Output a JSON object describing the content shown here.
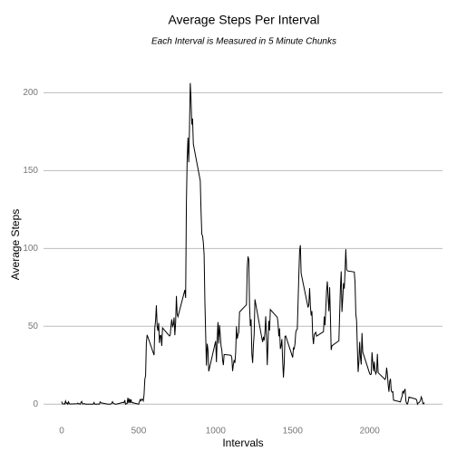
{
  "chart_data": {
    "type": "line",
    "title": "Average Steps Per Interval",
    "subtitle": "Each Interval is Measured in 5 Minute Chunks",
    "x_label": "Intervals",
    "y_label": "Average Steps",
    "grid": true,
    "xlim": [
      -117.75,
      2472.75
    ],
    "ylim": [
      -10.3,
      216.5
    ],
    "xticks": [
      0,
      500,
      1000,
      1500,
      2000
    ],
    "yticks": [
      0,
      50,
      100,
      150,
      200
    ],
    "x": [
      0,
      5,
      10,
      15,
      20,
      25,
      30,
      35,
      40,
      45,
      50,
      55,
      100,
      105,
      110,
      115,
      120,
      125,
      130,
      135,
      140,
      145,
      150,
      155,
      200,
      205,
      210,
      215,
      220,
      225,
      230,
      235,
      240,
      245,
      250,
      255,
      300,
      305,
      310,
      315,
      320,
      325,
      330,
      335,
      340,
      345,
      350,
      355,
      400,
      405,
      410,
      415,
      420,
      425,
      430,
      435,
      440,
      445,
      450,
      455,
      500,
      505,
      510,
      515,
      520,
      525,
      530,
      535,
      540,
      545,
      550,
      555,
      600,
      605,
      610,
      615,
      620,
      625,
      630,
      635,
      640,
      645,
      650,
      655,
      700,
      705,
      710,
      715,
      720,
      725,
      730,
      735,
      740,
      745,
      750,
      755,
      800,
      805,
      810,
      815,
      820,
      825,
      830,
      835,
      840,
      845,
      850,
      855,
      900,
      905,
      910,
      915,
      920,
      925,
      930,
      935,
      940,
      945,
      950,
      955,
      1000,
      1005,
      1010,
      1015,
      1020,
      1025,
      1030,
      1035,
      1040,
      1045,
      1050,
      1055,
      1100,
      1105,
      1110,
      1115,
      1120,
      1125,
      1130,
      1135,
      1140,
      1145,
      1150,
      1155,
      1200,
      1205,
      1210,
      1215,
      1220,
      1225,
      1230,
      1235,
      1240,
      1245,
      1250,
      1255,
      1300,
      1305,
      1310,
      1315,
      1320,
      1325,
      1330,
      1335,
      1340,
      1345,
      1350,
      1355,
      1400,
      1405,
      1410,
      1415,
      1420,
      1425,
      1430,
      1435,
      1440,
      1445,
      1450,
      1455,
      1500,
      1505,
      1510,
      1515,
      1520,
      1525,
      1530,
      1535,
      1540,
      1545,
      1550,
      1555,
      1600,
      1605,
      1610,
      1615,
      1620,
      1625,
      1630,
      1635,
      1640,
      1645,
      1650,
      1655,
      1700,
      1705,
      1710,
      1715,
      1720,
      1725,
      1730,
      1735,
      1740,
      1745,
      1750,
      1755,
      1800,
      1805,
      1810,
      1815,
      1820,
      1825,
      1830,
      1835,
      1840,
      1845,
      1850,
      1855,
      1900,
      1905,
      1910,
      1915,
      1920,
      1925,
      1930,
      1935,
      1940,
      1945,
      1950,
      1955,
      2000,
      2005,
      2010,
      2015,
      2020,
      2025,
      2030,
      2035,
      2040,
      2045,
      2050,
      2055,
      2100,
      2105,
      2110,
      2115,
      2120,
      2125,
      2130,
      2135,
      2140,
      2145,
      2150,
      2155,
      2200,
      2205,
      2210,
      2215,
      2220,
      2225,
      2230,
      2235,
      2240,
      2245,
      2250,
      2255,
      2300,
      2305,
      2310,
      2315,
      2320,
      2325,
      2330,
      2335,
      2340,
      2345,
      2350,
      2355
    ],
    "series": [
      {
        "color": "#000000",
        "values": [
          1.7,
          0.3,
          0.1,
          0.2,
          0.1,
          2.1,
          0.5,
          0.9,
          0,
          1.5,
          0.3,
          0.1,
          0.3,
          0.7,
          0.2,
          0.3,
          0,
          1.1,
          1.8,
          0.2,
          0.2,
          0.4,
          0.3,
          0,
          0,
          0,
          1.1,
          0,
          0,
          0.1,
          0,
          0.2,
          0,
          0,
          1.5,
          0.9,
          0,
          0,
          0,
          0,
          0.2,
          0.6,
          1.6,
          0.6,
          0.5,
          0.1,
          0,
          0,
          1.2,
          0.9,
          2.6,
          0,
          0.3,
          0.4,
          4.1,
          0.7,
          3.5,
          0.8,
          3.1,
          1.1,
          0,
          1.6,
          3,
          2.2,
          3.3,
          3,
          2.1,
          6.1,
          16,
          18.3,
          39.5,
          44.5,
          31.5,
          49.3,
          53.8,
          63.5,
          50,
          47.1,
          52.2,
          39.3,
          44,
          44.2,
          37.4,
          49,
          43.8,
          44.4,
          50.5,
          54.5,
          49.9,
          51,
          55.7,
          44.3,
          52.3,
          69.5,
          57.8,
          56.2,
          73.4,
          68.2,
          129.4,
          157.5,
          171.2,
          155.4,
          177.3,
          206.2,
          195.9,
          179.6,
          183.4,
          167,
          143.5,
          124,
          109.1,
          108.1,
          103.7,
          96,
          66.2,
          45.2,
          24.8,
          38.8,
          35,
          21.1,
          40.6,
          27,
          42.4,
          52.7,
          38.9,
          50.8,
          44.3,
          37.4,
          34.7,
          28.3,
          25.1,
          31.9,
          31.4,
          29.7,
          21.3,
          25.5,
          28.4,
          26.5,
          33.4,
          50,
          42,
          44.6,
          46,
          59.2,
          63.9,
          87.7,
          94.8,
          92.8,
          63.4,
          50.2,
          54.5,
          32.4,
          26.5,
          37.7,
          45.1,
          67.3,
          42.3,
          39.9,
          43.3,
          41,
          46.2,
          56.4,
          42.8,
          25.1,
          40,
          53.5,
          47.3,
          60.8,
          55.8,
          52,
          43.6,
          48.7,
          35.5,
          37.5,
          41.8,
          27.5,
          17.1,
          26.1,
          43.6,
          43.8,
          30,
          36.1,
          35.5,
          38.8,
          46,
          47.8,
          48.1,
          65.3,
          82.9,
          98.7,
          102.1,
          84,
          62.1,
          64.1,
          74.5,
          63.2,
          56.9,
          59.8,
          43.9,
          38.6,
          44.7,
          45.5,
          46.2,
          43.7,
          46.6,
          56.3,
          50.7,
          61.2,
          72.7,
          78.9,
          68.9,
          59.7,
          75.1,
          56.5,
          34.8,
          37.5,
          40.7,
          58,
          74.7,
          85.3,
          59.3,
          67.8,
          77.7,
          74.2,
          85.3,
          99.5,
          86.6,
          85.6,
          84.9,
          77.8,
          58,
          53.4,
          36.3,
          20.7,
          27.4,
          40,
          30.2,
          25.5,
          45.7,
          33.5,
          19.6,
          19,
          19.3,
          33.3,
          26.8,
          21.2,
          27.3,
          21.3,
          19.5,
          21.3,
          32.3,
          20.2,
          15.9,
          17.2,
          23.5,
          19.2,
          12.5,
          8,
          14.7,
          16.3,
          8.7,
          7.8,
          8.1,
          2.6,
          1.5,
          3.7,
          4.8,
          8.5,
          7.1,
          8.7,
          9.8,
          2.2,
          0.3,
          0.1,
          1.6,
          4.6,
          3.3,
          2.8,
          0,
          0.8,
          1,
          1.6,
          2.6,
          4.7,
          3.3,
          0.6,
          0.2,
          1.1
        ]
      }
    ]
  }
}
